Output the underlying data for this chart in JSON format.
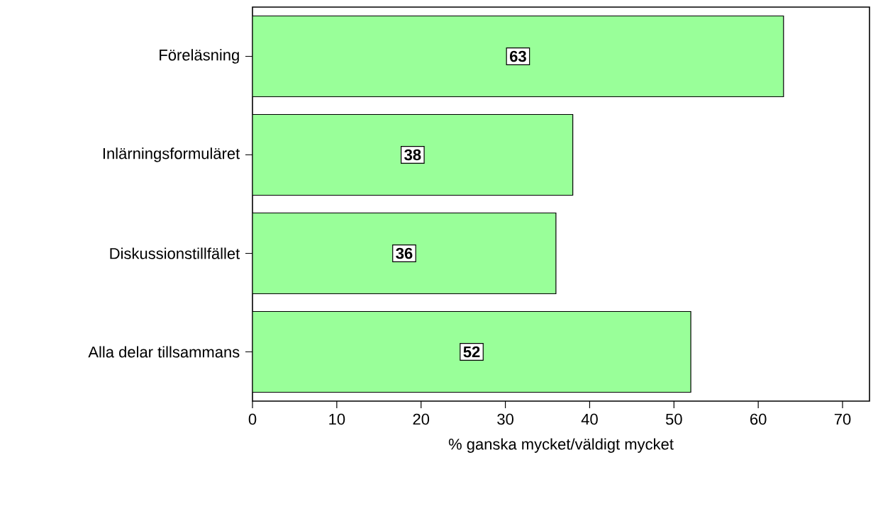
{
  "chart_data": {
    "type": "bar",
    "orientation": "horizontal",
    "xlabel": "% ganska mycket/väldigt mycket",
    "categories": [
      "Föreläsning",
      "Inlärningsformuläret",
      "Diskussionstillfället",
      "Alla delar tillsammans"
    ],
    "values": [
      63,
      38,
      36,
      52
    ],
    "color": "#99ff99",
    "data_labels": true,
    "xlim": [
      0,
      73.2
    ],
    "xticks": [
      0,
      10,
      20,
      30,
      40,
      50,
      60,
      70
    ]
  }
}
